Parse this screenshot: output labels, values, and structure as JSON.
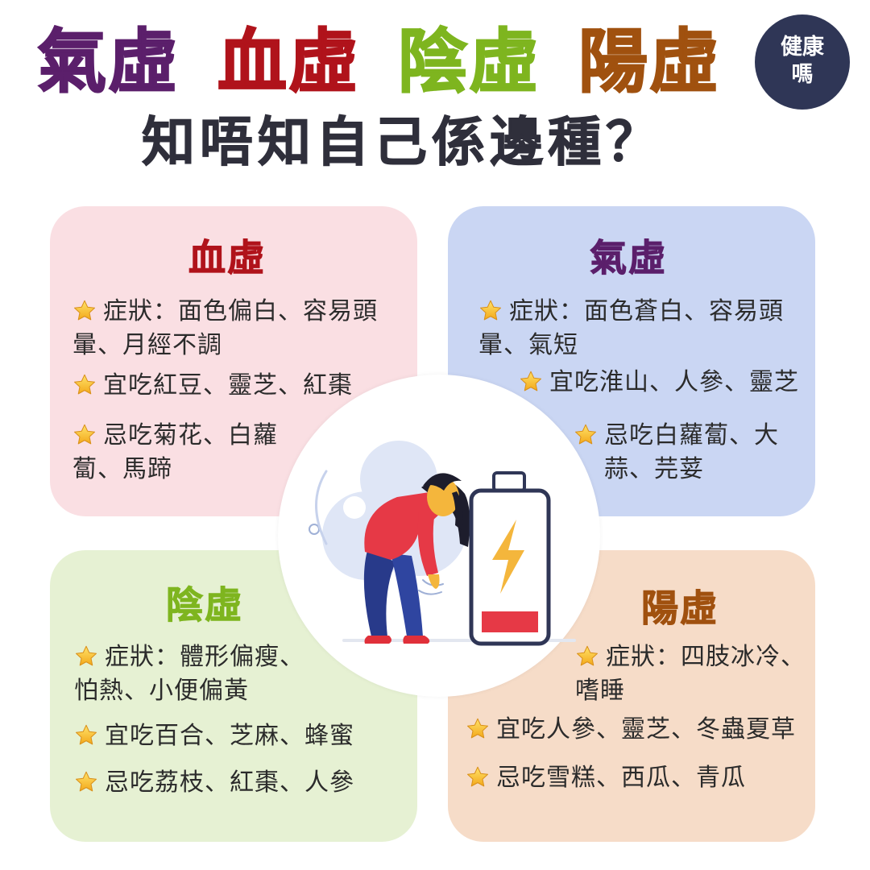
{
  "header": {
    "title_1": "氣虛",
    "title_2": "血虛",
    "title_3": "陰虛",
    "title_4": "陽虛",
    "subtitle": "知唔知自己係邊種？",
    "logo_line1": "健康",
    "logo_line2": "嗎"
  },
  "cards": {
    "xue": {
      "title": "血虛",
      "symptoms_1": "症狀：面色偏白、容易頭",
      "symptoms_2": "暈、月經不調",
      "eat": "宜吃紅豆、靈芝、紅棗",
      "avoid_1": "忌吃菊花、白蘿",
      "avoid_2": "蔔、馬蹄"
    },
    "qi": {
      "title": "氣虛",
      "symptoms_1": "症狀：面色蒼白、容易頭",
      "symptoms_2": "暈、氣短",
      "eat": "宜吃淮山、人參、靈芝",
      "avoid_1": "忌吃白蘿蔔、大",
      "avoid_2": "蒜、芫荽"
    },
    "yin": {
      "title": "陰虛",
      "symptoms_1": "症狀：體形偏瘦、",
      "symptoms_2": "怕熱、小便偏黃",
      "eat": "宜吃百合、芝麻、蜂蜜",
      "avoid": "忌吃荔枝、紅棗、人參"
    },
    "yang": {
      "title": "陽虛",
      "symptoms_1": "症狀：四肢冰冷、",
      "symptoms_2": "嗜睡",
      "eat": "宜吃人參、靈芝、冬蟲夏草",
      "avoid": "忌吃雪糕、西瓜、青瓜"
    }
  },
  "colors": {
    "qi": "#5b1f6b",
    "xue": "#b0131b",
    "yin": "#7eb51f",
    "yang": "#a0510f",
    "star": "#f5c518"
  },
  "icons": {
    "star": "star-icon",
    "battery": "low-battery-icon",
    "person": "tired-person-illustration"
  }
}
